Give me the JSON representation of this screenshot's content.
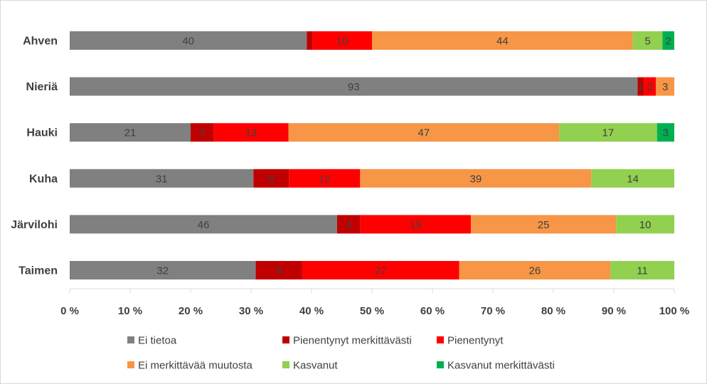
{
  "chart_data": {
    "type": "bar",
    "orientation": "horizontal",
    "stacked": "percent",
    "categories": [
      "Ahven",
      "Nieriä",
      "Hauki",
      "Kuha",
      "Järvilohi",
      "Taimen"
    ],
    "series": [
      {
        "name": "Ei tietoa",
        "color": "#808080",
        "values": [
          40,
          93,
          21,
          31,
          46,
          32
        ],
        "labels": [
          "40",
          "93",
          "21",
          "31",
          "46",
          "32"
        ]
      },
      {
        "name": "Pienentynyt merkittävästi",
        "color": "#c00000",
        "values": [
          1,
          1,
          4,
          6,
          4,
          8
        ],
        "labels": [
          "",
          "1",
          "4",
          "6",
          "4",
          "8"
        ]
      },
      {
        "name": "Pienentynyt",
        "color": "#ff0000",
        "values": [
          10,
          2,
          13,
          12,
          19,
          27
        ],
        "labels": [
          "10",
          "2",
          "13",
          "12",
          "19",
          "27"
        ]
      },
      {
        "name": "Ei merkittävää muutosta",
        "color": "#f79646",
        "values": [
          44,
          3,
          47,
          39,
          25,
          26
        ],
        "labels": [
          "44",
          "3",
          "47",
          "39",
          "25",
          "26"
        ]
      },
      {
        "name": "Kasvanut",
        "color": "#92d050",
        "values": [
          5,
          0,
          17,
          14,
          10,
          11
        ],
        "labels": [
          "5",
          "",
          "17",
          "14",
          "10",
          "11"
        ]
      },
      {
        "name": "Kasvanut merkittävästi",
        "color": "#00b050",
        "values": [
          2,
          0,
          3,
          0,
          0,
          0
        ],
        "labels": [
          "2",
          "",
          "3",
          "",
          "",
          ""
        ]
      }
    ],
    "xticks": [
      "0 %",
      "10 %",
      "20 %",
      "30 %",
      "40 %",
      "50 %",
      "60 %",
      "70 %",
      "80 %",
      "90 %",
      "100 %"
    ],
    "xlim": [
      0,
      100
    ],
    "grid": false,
    "legend_position": "bottom"
  }
}
